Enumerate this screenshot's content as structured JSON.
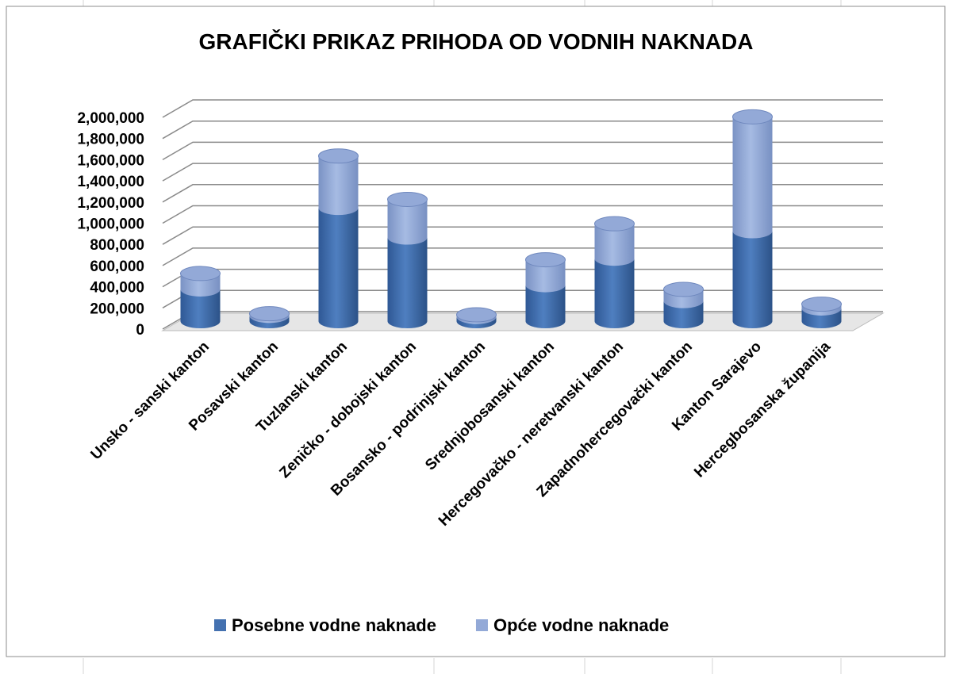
{
  "chart_data": {
    "type": "bar3d_stacked",
    "title": "GRAFIČKI PRIKAZ PRIHODA OD VODNIH NAKNADA",
    "categories": [
      "Unsko - sanski kanton",
      "Posavski kanton",
      "Tuzlanski kanton",
      "Zeničko - dobojski kanton",
      "Bosansko - podrinjski kanton",
      "Srednjobosanski kanton",
      "Hercegovačko - neretvanski kanton",
      "Zapadnohercegovački kanton",
      "Kanton Sarajevo",
      "Hercegbosanska županija"
    ],
    "series": [
      {
        "name": "Posebne vodne naknade",
        "color": "#4471b0",
        "values": [
          300000,
          50000,
          1070000,
          790000,
          40000,
          340000,
          590000,
          190000,
          850000,
          120000
        ]
      },
      {
        "name": "Opće vodne naknade",
        "color": "#93a9d7",
        "values": [
          150000,
          20000,
          490000,
          360000,
          20000,
          240000,
          330000,
          110000,
          1080000,
          40000
        ]
      }
    ],
    "ylim": [
      0,
      2000000
    ],
    "yticks": [
      0,
      {
        "value": 200000,
        "label": "200,000"
      },
      {
        "value": 400000,
        "label": "400,000"
      },
      {
        "value": 600000,
        "label": "600,000"
      },
      {
        "value": 800000,
        "label": "800,000"
      },
      {
        "value": 1000000,
        "label": "1,000,000"
      },
      {
        "value": 1200000,
        "label": "1,200,000"
      },
      {
        "value": 1400000,
        "label": "1,400,000"
      },
      {
        "value": 1600000,
        "label": "1,600,000"
      },
      {
        "value": 1800000,
        "label": "1,800,000"
      },
      {
        "value": 2000000,
        "label": "2,000,000"
      }
    ],
    "stacked": true,
    "grid": true,
    "legend": "bottom"
  }
}
